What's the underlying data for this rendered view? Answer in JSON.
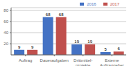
{
  "chart_data": {
    "type": "bar",
    "categories": [
      "Auftrag",
      "Daueraufgaben",
      "Drittmittel-\nprojekte",
      "Externe\nAuftraggeber"
    ],
    "series": [
      {
        "name": "2016",
        "color": "#4472c4",
        "values": [
          9,
          68,
          19,
          5
        ]
      },
      {
        "name": "2017",
        "color": "#c0504d",
        "values": [
          9,
          68,
          19,
          6
        ]
      }
    ],
    "ylim": [
      0,
      85
    ],
    "yticks": [
      20,
      40,
      60,
      80
    ],
    "grid": true,
    "legend": "upper right",
    "data_labels": true
  }
}
